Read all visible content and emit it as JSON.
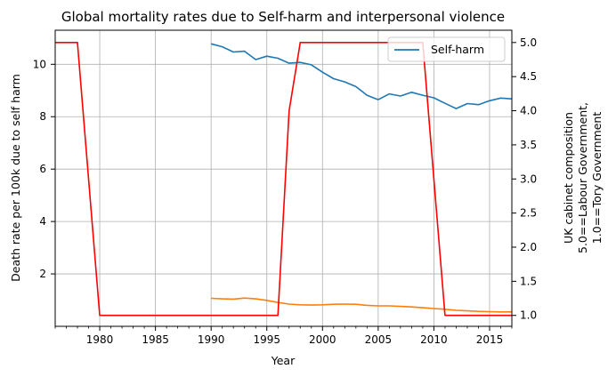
{
  "chart_data": {
    "type": "line",
    "title": "Global mortality rates due to Self-harm and interpersonal violence",
    "xlabel": "Year",
    "ylabel_left": "Death rate per 100k due to self harm",
    "ylabel_right": [
      "UK cabinet composition",
      "5.0==Labour Government,",
      "1.0==Tory Government"
    ],
    "xlim": [
      1976,
      2017
    ],
    "ylim_left": [
      0,
      11.3
    ],
    "ylim_right": [
      0.84,
      5.18
    ],
    "x_ticks": [
      1980,
      1985,
      1990,
      1995,
      2000,
      2005,
      2010,
      2015
    ],
    "y_ticks_left": [
      2,
      4,
      6,
      8,
      10
    ],
    "y_ticks_right": [
      1.0,
      1.5,
      2.0,
      2.5,
      3.0,
      3.5,
      4.0,
      4.5,
      5.0
    ],
    "y_tick_labels_right": [
      "1.0",
      "1.5",
      "2.0",
      "2.5",
      "3.0",
      "3.5",
      "4.0",
      "4.5",
      "5.0"
    ],
    "grid": true,
    "legend": {
      "position": "top-right",
      "entries": [
        "Self-harm"
      ]
    },
    "series": [
      {
        "name": "Self-harm",
        "axis": "left",
        "color": "#1f77b4",
        "x": [
          1990,
          1991,
          1992,
          1993,
          1994,
          1995,
          1996,
          1997,
          1998,
          1999,
          2000,
          2001,
          2002,
          2003,
          2004,
          2005,
          2006,
          2007,
          2008,
          2009,
          2010,
          2011,
          2012,
          2013,
          2014,
          2015,
          2016,
          2017
        ],
        "values": [
          10.78,
          10.67,
          10.47,
          10.5,
          10.18,
          10.31,
          10.23,
          10.04,
          10.07,
          9.98,
          9.7,
          9.45,
          9.33,
          9.15,
          8.82,
          8.65,
          8.87,
          8.79,
          8.93,
          8.82,
          8.72,
          8.51,
          8.31,
          8.5,
          8.46,
          8.61,
          8.71,
          8.68
        ]
      },
      {
        "name": "",
        "axis": "left",
        "color": "#ff7f0e",
        "x": [
          1990,
          1991,
          1992,
          1993,
          1994,
          1995,
          1996,
          1997,
          1998,
          1999,
          2000,
          2001,
          2002,
          2003,
          2004,
          2005,
          2006,
          2007,
          2008,
          2009,
          2010,
          2011,
          2012,
          2013,
          2014,
          2015,
          2016,
          2017
        ],
        "values": [
          1.07,
          1.05,
          1.04,
          1.08,
          1.05,
          0.99,
          0.91,
          0.85,
          0.82,
          0.81,
          0.82,
          0.84,
          0.85,
          0.84,
          0.8,
          0.78,
          0.78,
          0.76,
          0.74,
          0.71,
          0.68,
          0.65,
          0.61,
          0.59,
          0.57,
          0.56,
          0.55,
          0.55
        ]
      },
      {
        "name": "",
        "axis": "right",
        "color": "#ff0000",
        "x": [
          1976,
          1977,
          1978,
          1979,
          1980,
          1981,
          1982,
          1983,
          1984,
          1985,
          1986,
          1987,
          1988,
          1989,
          1990,
          1991,
          1992,
          1993,
          1994,
          1995,
          1996,
          1997,
          1998,
          1999,
          2000,
          2001,
          2002,
          2003,
          2004,
          2005,
          2006,
          2007,
          2008,
          2009,
          2010,
          2011,
          2012,
          2013,
          2014,
          2015,
          2016,
          2017
        ],
        "values": [
          5.0,
          5.0,
          5.0,
          3.0,
          1.0,
          1.0,
          1.0,
          1.0,
          1.0,
          1.0,
          1.0,
          1.0,
          1.0,
          1.0,
          1.0,
          1.0,
          1.0,
          1.0,
          1.0,
          1.0,
          1.0,
          4.0,
          5.0,
          5.0,
          5.0,
          5.0,
          5.0,
          5.0,
          5.0,
          5.0,
          5.0,
          5.0,
          5.0,
          5.0,
          3.0,
          1.0,
          1.0,
          1.0,
          1.0,
          1.0,
          1.0,
          1.0
        ]
      }
    ]
  }
}
